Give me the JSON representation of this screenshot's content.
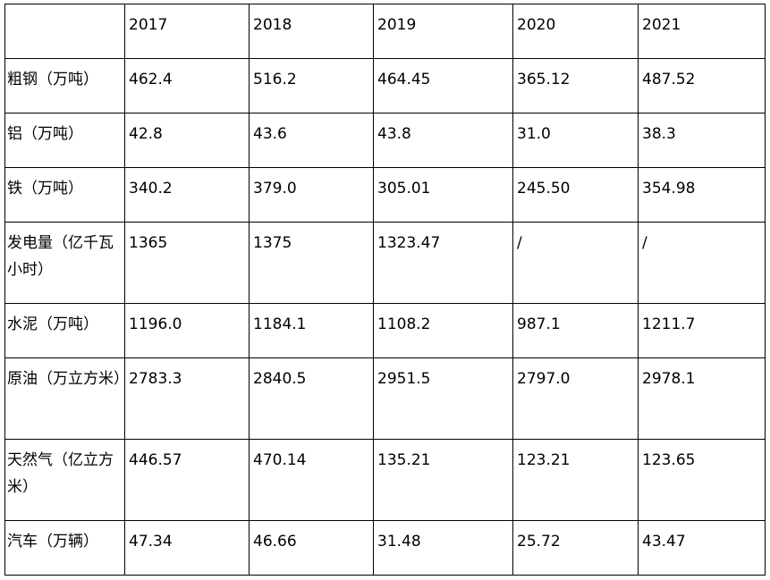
{
  "table": {
    "header": [
      "",
      "2017",
      "2018",
      "2019",
      "2020",
      "2021"
    ],
    "rows": [
      {
        "label": "粗钢（万吨）",
        "values": [
          "462.4",
          "516.2",
          "464.45",
          "365.12",
          "487.52"
        ]
      },
      {
        "label": "铝（万吨）",
        "values": [
          "42.8",
          "43.6",
          "43.8",
          "31.0",
          "38.3"
        ]
      },
      {
        "label": "铁（万吨）",
        "values": [
          "340.2",
          "379.0",
          "305.01",
          "245.50",
          "354.98"
        ]
      },
      {
        "label": "发电量（亿千瓦小时）",
        "values": [
          "1365",
          "1375",
          "1323.47",
          "/",
          "/"
        ]
      },
      {
        "label": "水泥（万吨）",
        "values": [
          "1196.0",
          "1184.1",
          "1108.2",
          "987.1",
          "1211.7"
        ]
      },
      {
        "label": "原油（万立方米）",
        "values": [
          "2783.3",
          "2840.5",
          "2951.5",
          "2797.0",
          "2978.1"
        ]
      },
      {
        "label": "天然气（亿立方米）",
        "values": [
          "446.57",
          "470.14",
          "135.21",
          "123.21",
          "123.65"
        ]
      },
      {
        "label": "汽车（万辆）",
        "values": [
          "47.34",
          "46.66",
          "31.48",
          "25.72",
          "43.47"
        ]
      }
    ]
  }
}
